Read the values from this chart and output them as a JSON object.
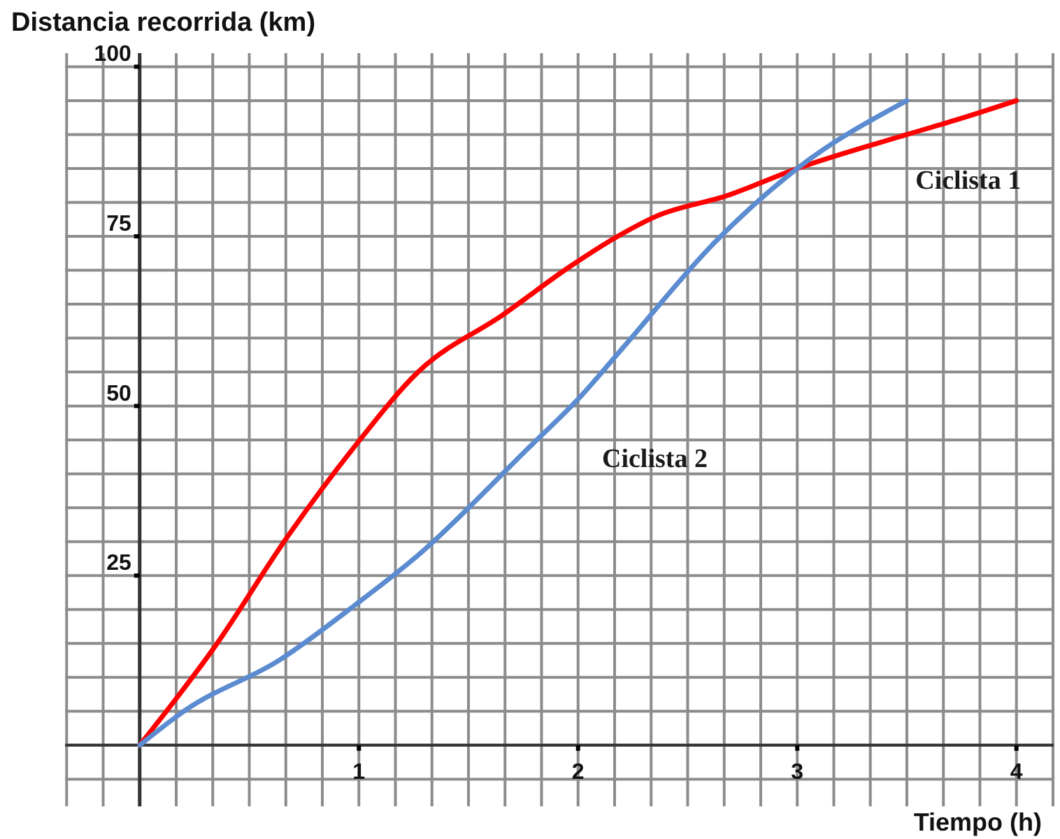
{
  "chart_data": {
    "type": "line",
    "ylabel": "Distancia recorrida (km)",
    "xlabel": "Tiempo (h)",
    "xlim": [
      -0.34,
      4.17
    ],
    "ylim": [
      -9,
      102
    ],
    "xticks": [
      {
        "value": -0.3333,
        "label": null
      },
      {
        "value": -0.1667,
        "label": null
      },
      {
        "value": 0,
        "label": null
      },
      {
        "value": 0.1667,
        "label": null
      },
      {
        "value": 0.3333,
        "label": null
      },
      {
        "value": 0.5,
        "label": null
      },
      {
        "value": 0.6667,
        "label": null
      },
      {
        "value": 0.8333,
        "label": null
      },
      1,
      {
        "value": 1.1667,
        "label": null
      },
      {
        "value": 1.3333,
        "label": null
      },
      {
        "value": 1.5,
        "label": null
      },
      {
        "value": 1.6667,
        "label": null
      },
      {
        "value": 1.8333,
        "label": null
      },
      2,
      {
        "value": 2.1667,
        "label": null
      },
      {
        "value": 2.3333,
        "label": null
      },
      {
        "value": 2.5,
        "label": null
      },
      {
        "value": 2.6667,
        "label": null
      },
      {
        "value": 2.8333,
        "label": null
      },
      3,
      {
        "value": 3.1667,
        "label": null
      },
      {
        "value": 3.3333,
        "label": null
      },
      {
        "value": 3.5,
        "label": null
      },
      {
        "value": 3.6667,
        "label": null
      },
      {
        "value": 3.8333,
        "label": null
      },
      4,
      {
        "value": 4.1667,
        "label": null
      }
    ],
    "yticks": [
      {
        "value": -5,
        "label": null
      },
      {
        "value": 0,
        "label": null
      },
      {
        "value": 5,
        "label": null
      },
      {
        "value": 10,
        "label": null
      },
      {
        "value": 15,
        "label": null
      },
      {
        "value": 20,
        "label": null
      },
      25,
      {
        "value": 30,
        "label": null
      },
      {
        "value": 35,
        "label": null
      },
      {
        "value": 40,
        "label": null
      },
      {
        "value": 45,
        "label": null
      },
      50,
      {
        "value": 55,
        "label": null
      },
      {
        "value": 60,
        "label": null
      },
      {
        "value": 65,
        "label": null
      },
      {
        "value": 70,
        "label": null
      },
      75,
      {
        "value": 80,
        "label": null
      },
      {
        "value": 85,
        "label": null
      },
      {
        "value": 90,
        "label": null
      },
      {
        "value": 95,
        "label": null
      },
      100
    ],
    "grid": true,
    "marker": "none",
    "line_style": "solid",
    "series": [
      {
        "name": "Ciclista 1",
        "color": "#ff0000",
        "x": [
          0,
          0.34,
          0.68,
          0.98,
          1.27,
          1.66,
          1.97,
          2.17,
          2.36,
          2.68,
          3,
          3.5,
          3.76,
          4
        ],
        "values": [
          0,
          14.4,
          31,
          44,
          55,
          63.5,
          70.7,
          74.8,
          78,
          81,
          85,
          90,
          92.5,
          95
        ]
      },
      {
        "name": "Ciclista 2",
        "color": "#5b8bd0",
        "x": [
          0,
          0.21,
          0.64,
          0.98,
          1.27,
          1.78,
          2,
          2.2,
          2.62,
          3,
          3.5
        ],
        "values": [
          0,
          5.2,
          12.6,
          20.6,
          28,
          44,
          51,
          58.4,
          74,
          85,
          95
        ]
      }
    ]
  }
}
